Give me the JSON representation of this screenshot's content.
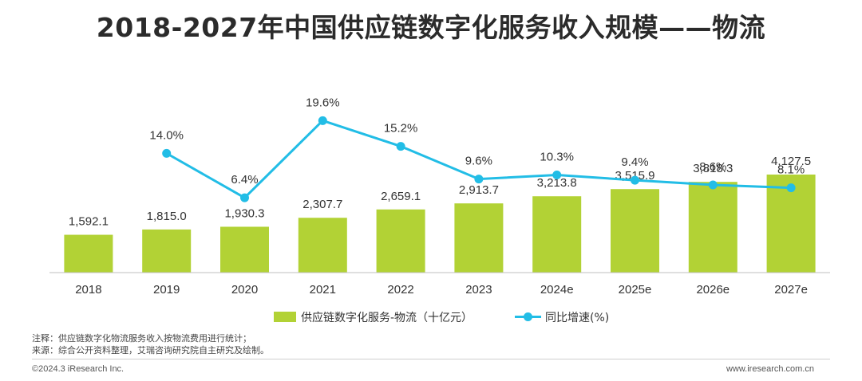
{
  "title": "2018-2027年中国供应链数字化服务收入规模——物流",
  "chart_data": {
    "type": "bar",
    "title": "2018-2027年中国供应链数字化服务收入规模——物流",
    "categories": [
      "2018",
      "2019",
      "2020",
      "2021",
      "2022",
      "2023",
      "2024e",
      "2025e",
      "2026e",
      "2027e"
    ],
    "series": [
      {
        "name": "供应链数字化服务-物流（十亿元）",
        "type": "bar",
        "color": "#b2d235",
        "values": [
          1592.1,
          1815.0,
          1930.3,
          2307.7,
          2659.1,
          2913.7,
          3213.8,
          3515.9,
          3818.3,
          4127.5
        ],
        "labels": [
          "1,592.1",
          "1,815.0",
          "1,930.3",
          "2,307.7",
          "2,659.1",
          "2,913.7",
          "3,213.8",
          "3,515.9",
          "3,818.3",
          "4,127.5"
        ]
      },
      {
        "name": "同比增速(%)",
        "type": "line",
        "color": "#22bde6",
        "values": [
          null,
          14.0,
          6.4,
          19.6,
          15.2,
          9.6,
          10.3,
          9.4,
          8.6,
          8.1
        ],
        "labels": [
          "",
          "14.0%",
          "6.4%",
          "19.6%",
          "15.2%",
          "9.6%",
          "10.3%",
          "9.4%",
          "8.6%",
          "8.1%"
        ]
      }
    ],
    "legend": "bottom",
    "grid": false
  },
  "notes": {
    "note": "注释：供应链数字化物流服务收入按物流费用进行统计；",
    "source": "来源：综合公开资料整理，艾瑞咨询研究院自主研究及绘制。"
  },
  "footer": {
    "copyright": "©2024.3 iResearch Inc.",
    "website": "www.iresearch.com.cn"
  }
}
